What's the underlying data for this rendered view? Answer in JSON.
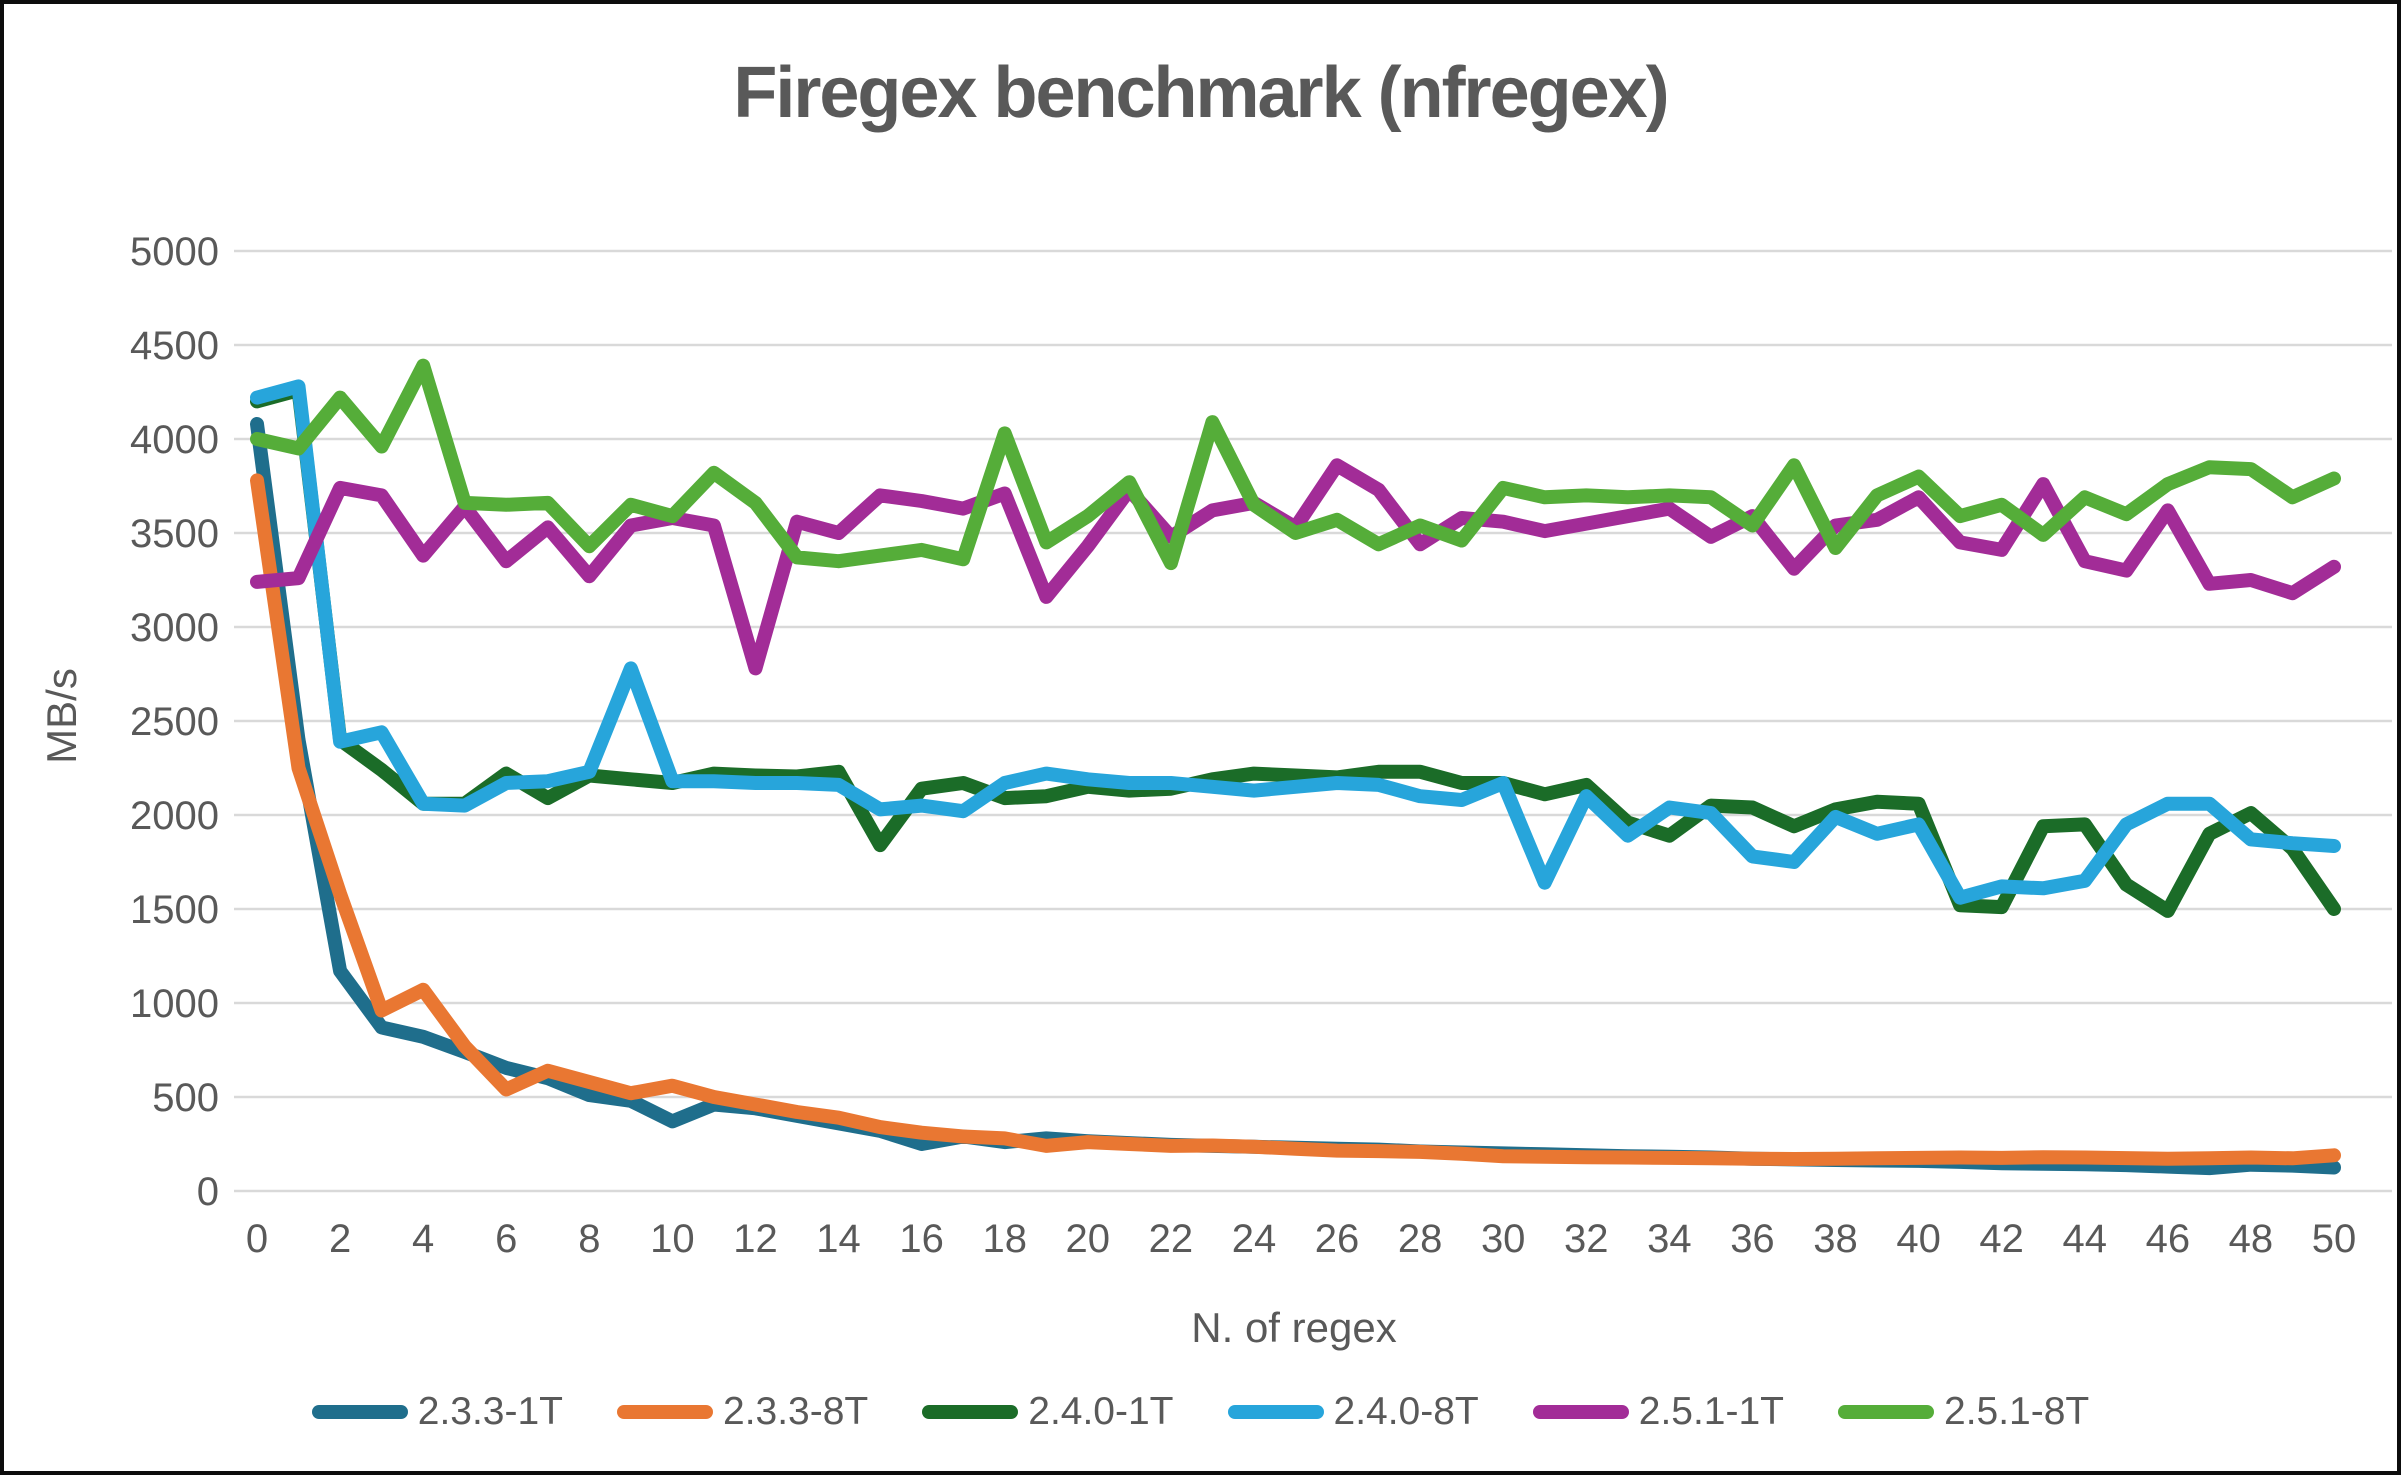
{
  "title": "Firegex benchmark (nfregex)",
  "y_axis": {
    "label": "MB/s"
  },
  "x_axis": {
    "label": "N. of regex"
  },
  "colors": {
    "grid": "#d9d9d9",
    "text": "#595959",
    "background": "#ffffff",
    "border": "#0d0d0d"
  },
  "chart_data": {
    "type": "line",
    "title": "Firegex benchmark (nfregex)",
    "xlabel": "N. of regex",
    "ylabel": "MB/s",
    "xlim": [
      0,
      50
    ],
    "ylim": [
      0,
      5000
    ],
    "grid": true,
    "legend_position": "bottom",
    "y_ticks": [
      0,
      500,
      1000,
      1500,
      2000,
      2500,
      3000,
      3500,
      4000,
      4500,
      5000
    ],
    "x_ticks": [
      0,
      2,
      4,
      6,
      8,
      10,
      12,
      14,
      16,
      18,
      20,
      22,
      24,
      26,
      28,
      30,
      32,
      34,
      36,
      38,
      40,
      42,
      44,
      46,
      48,
      50
    ],
    "x": [
      0,
      1,
      2,
      3,
      4,
      5,
      6,
      7,
      8,
      9,
      10,
      11,
      12,
      13,
      14,
      15,
      16,
      17,
      18,
      19,
      20,
      21,
      22,
      23,
      24,
      25,
      26,
      27,
      28,
      29,
      30,
      31,
      32,
      33,
      34,
      35,
      36,
      37,
      38,
      39,
      40,
      41,
      42,
      43,
      44,
      45,
      46,
      47,
      48,
      49,
      50
    ],
    "series": [
      {
        "name": "2.3.3-1T",
        "color": "#1f6e8c",
        "values": [
          4080,
          2400,
          1170,
          870,
          820,
          740,
          655,
          600,
          510,
          480,
          370,
          460,
          440,
          400,
          360,
          320,
          250,
          290,
          260,
          280,
          265,
          255,
          245,
          240,
          235,
          230,
          225,
          220,
          210,
          205,
          200,
          195,
          190,
          185,
          182,
          178,
          172,
          168,
          165,
          162,
          160,
          155,
          148,
          145,
          142,
          138,
          130,
          122,
          140,
          135,
          125
        ]
      },
      {
        "name": "2.3.3-8T",
        "color": "#e97732",
        "values": [
          3780,
          2250,
          1580,
          960,
          1070,
          770,
          540,
          640,
          580,
          520,
          560,
          500,
          460,
          420,
          390,
          340,
          310,
          290,
          280,
          240,
          260,
          250,
          240,
          242,
          235,
          225,
          215,
          212,
          208,
          198,
          185,
          182,
          180,
          178,
          176,
          174,
          172,
          170,
          172,
          174,
          176,
          178,
          176,
          180,
          178,
          175,
          172,
          174,
          178,
          174,
          190
        ]
      },
      {
        "name": "2.4.0-1T",
        "color": "#1b6c28",
        "values": [
          4200,
          4260,
          2400,
          2240,
          2060,
          2060,
          2220,
          2090,
          2210,
          2190,
          2170,
          2220,
          2210,
          2205,
          2230,
          1840,
          2140,
          2170,
          2090,
          2100,
          2150,
          2130,
          2140,
          2190,
          2220,
          2210,
          2200,
          2230,
          2230,
          2170,
          2170,
          2110,
          2160,
          1960,
          1890,
          2050,
          2040,
          1940,
          2030,
          2070,
          2060,
          1520,
          1510,
          1940,
          1950,
          1630,
          1490,
          1900,
          2010,
          1820,
          1500
        ]
      },
      {
        "name": "2.4.0-8T",
        "color": "#27a5db",
        "values": [
          4220,
          4280,
          2390,
          2440,
          2060,
          2050,
          2170,
          2180,
          2230,
          2780,
          2180,
          2180,
          2170,
          2170,
          2160,
          2030,
          2050,
          2020,
          2170,
          2220,
          2190,
          2170,
          2170,
          2150,
          2130,
          2150,
          2170,
          2160,
          2100,
          2080,
          2170,
          1640,
          2100,
          1890,
          2040,
          2010,
          1780,
          1750,
          1990,
          1900,
          1950,
          1560,
          1620,
          1610,
          1650,
          1950,
          2060,
          2060,
          1870,
          1850,
          1835
        ]
      },
      {
        "name": "2.5.1-1T",
        "color": "#a22c97",
        "values": [
          3240,
          3260,
          3740,
          3700,
          3380,
          3640,
          3350,
          3530,
          3270,
          3540,
          3580,
          3540,
          2780,
          3560,
          3500,
          3700,
          3670,
          3630,
          3710,
          3160,
          3430,
          3730,
          3480,
          3620,
          3660,
          3530,
          3860,
          3730,
          3440,
          3580,
          3560,
          3510,
          3550,
          3590,
          3630,
          3480,
          3590,
          3310,
          3540,
          3570,
          3690,
          3450,
          3410,
          3760,
          3350,
          3300,
          3620,
          3230,
          3250,
          3180,
          3320
        ]
      },
      {
        "name": "2.5.1-8T",
        "color": "#55ad39",
        "values": [
          4000,
          3950,
          4220,
          3960,
          4390,
          3660,
          3650,
          3660,
          3430,
          3650,
          3590,
          3820,
          3660,
          3370,
          3350,
          3380,
          3410,
          3360,
          4030,
          3450,
          3590,
          3770,
          3340,
          4090,
          3650,
          3500,
          3570,
          3440,
          3540,
          3460,
          3740,
          3690,
          3700,
          3690,
          3700,
          3690,
          3540,
          3860,
          3420,
          3700,
          3800,
          3590,
          3650,
          3490,
          3690,
          3600,
          3760,
          3850,
          3840,
          3690,
          3790
        ]
      }
    ]
  }
}
